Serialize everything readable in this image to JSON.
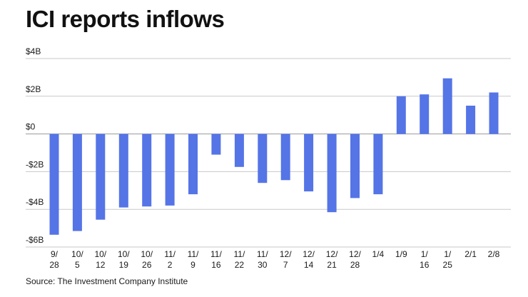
{
  "chart_data": {
    "type": "bar",
    "title": "ICI reports inflows",
    "source": "Source: The Investment Company Institute",
    "xlabel": "",
    "ylabel": "",
    "ylim": [
      -6,
      4
    ],
    "y_ticks": [
      4,
      2,
      0,
      -2,
      -4,
      -6
    ],
    "y_tick_labels": [
      "$4B",
      "$2B",
      "$0",
      "-$2B",
      "-$4B",
      "-$6B"
    ],
    "grid": true,
    "bar_color": "#5574e6",
    "categories": [
      [
        "9/",
        "28"
      ],
      [
        "10/",
        "5"
      ],
      [
        "10/",
        "12"
      ],
      [
        "10/",
        "19"
      ],
      [
        "10/",
        "26"
      ],
      [
        "11/",
        "2"
      ],
      [
        "11/",
        "9"
      ],
      [
        "11/",
        "16"
      ],
      [
        "11/",
        "22"
      ],
      [
        "11/",
        "30"
      ],
      [
        "12/",
        "7"
      ],
      [
        "12/",
        "14"
      ],
      [
        "12/",
        "21"
      ],
      [
        "12/",
        "28"
      ],
      [
        "1/4"
      ],
      [
        "1/9"
      ],
      [
        "1/",
        "16"
      ],
      [
        "1/",
        "25"
      ],
      [
        "2/1"
      ],
      [
        "2/8"
      ]
    ],
    "values": [
      -5.35,
      -5.15,
      -4.55,
      -3.9,
      -3.85,
      -3.8,
      -3.2,
      -1.1,
      -1.75,
      -2.6,
      -2.45,
      -3.05,
      -4.15,
      -3.4,
      -3.2,
      2.0,
      2.1,
      2.95,
      1.5,
      2.2
    ]
  }
}
